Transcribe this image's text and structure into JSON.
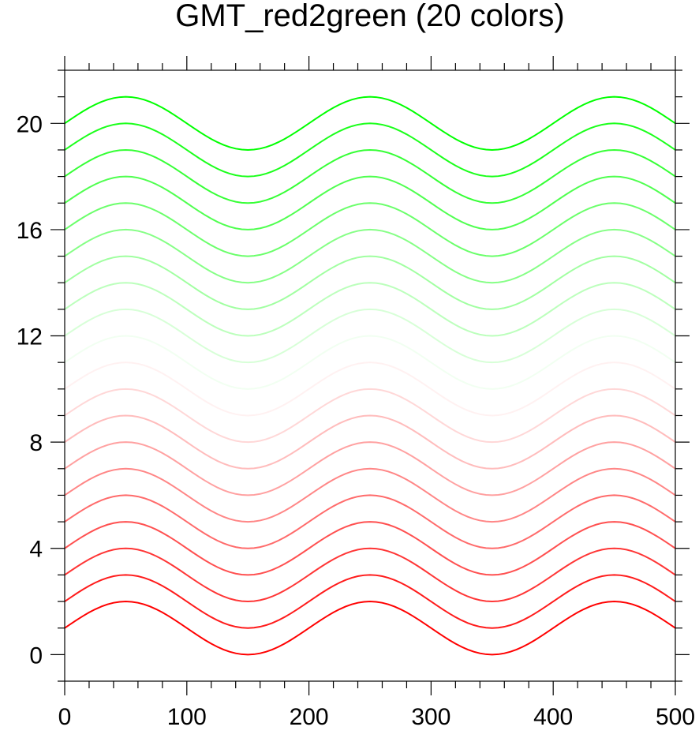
{
  "chart_data": {
    "type": "line",
    "title": "GMT_red2green (20 colors)",
    "xlabel": "",
    "ylabel": "",
    "xlim": [
      0,
      500
    ],
    "ylim": [
      -1,
      22
    ],
    "x_ticks": [
      0,
      100,
      200,
      300,
      400,
      500
    ],
    "y_ticks": [
      0,
      4,
      8,
      12,
      16,
      20
    ],
    "grid": false,
    "curve": "y = offset + sin(2*pi*x/200)",
    "x_sample_step": 5,
    "series": [
      {
        "offset": 1,
        "color": "#ff0000"
      },
      {
        "offset": 2,
        "color": "#ff1b1b"
      },
      {
        "offset": 3,
        "color": "#ff3636"
      },
      {
        "offset": 4,
        "color": "#ff5050"
      },
      {
        "offset": 5,
        "color": "#ff6b6b"
      },
      {
        "offset": 6,
        "color": "#ff8686"
      },
      {
        "offset": 7,
        "color": "#ffa1a1"
      },
      {
        "offset": 8,
        "color": "#ffbcbc"
      },
      {
        "offset": 9,
        "color": "#ffd7d7"
      },
      {
        "offset": 10,
        "color": "#fff1f1"
      },
      {
        "offset": 11,
        "color": "#f1fff1"
      },
      {
        "offset": 12,
        "color": "#d7ffd7"
      },
      {
        "offset": 13,
        "color": "#bcffbc"
      },
      {
        "offset": 14,
        "color": "#a1ffa1"
      },
      {
        "offset": 15,
        "color": "#86ff86"
      },
      {
        "offset": 16,
        "color": "#6bff6b"
      },
      {
        "offset": 17,
        "color": "#50ff50"
      },
      {
        "offset": 18,
        "color": "#36ff36"
      },
      {
        "offset": 19,
        "color": "#1bff1b"
      },
      {
        "offset": 20,
        "color": "#00ff00"
      }
    ]
  }
}
